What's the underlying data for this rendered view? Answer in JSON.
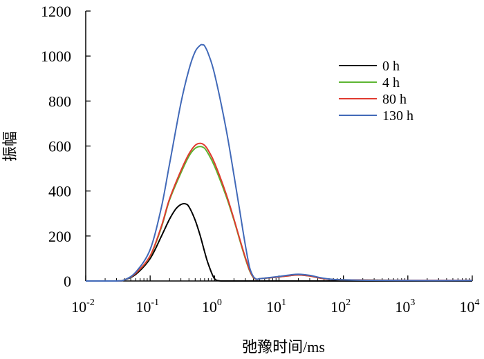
{
  "chart_data": {
    "type": "line",
    "title": "",
    "xlabel": "弛豫时间/ms",
    "ylabel": "振幅",
    "xscale": "log",
    "xlim": [
      0.01,
      10000
    ],
    "ylim": [
      0,
      1200
    ],
    "yticks": [
      "0",
      "200",
      "400",
      "600",
      "800",
      "1000",
      "1200"
    ],
    "xticks": [
      {
        "base": "10",
        "exp": "-2"
      },
      {
        "base": "10",
        "exp": "-1"
      },
      {
        "base": "10",
        "exp": "0"
      },
      {
        "base": "10",
        "exp": "1"
      },
      {
        "base": "10",
        "exp": "2"
      },
      {
        "base": "10",
        "exp": "3"
      },
      {
        "base": "10",
        "exp": "4"
      }
    ],
    "grid": false,
    "legend_position": "top-right",
    "series": [
      {
        "name": "0 h",
        "color": "#000000",
        "x": [
          0.01,
          0.03,
          0.04,
          0.06,
          0.1,
          0.15,
          0.2,
          0.25,
          0.3,
          0.35,
          0.4,
          0.5,
          0.6,
          0.7,
          0.8,
          1.0,
          1.3,
          3,
          10,
          100,
          1000,
          10000
        ],
        "y": [
          0,
          0,
          5,
          30,
          100,
          200,
          275,
          320,
          340,
          343,
          330,
          270,
          200,
          130,
          75,
          10,
          0,
          0,
          0,
          0,
          0,
          0
        ]
      },
      {
        "name": "4 h",
        "color": "#5cb531",
        "x": [
          0.01,
          0.03,
          0.04,
          0.06,
          0.1,
          0.15,
          0.2,
          0.3,
          0.4,
          0.5,
          0.6,
          0.7,
          0.8,
          1.0,
          1.5,
          2.0,
          2.5,
          3.0,
          3.5,
          4.0,
          4.5,
          5,
          7,
          10,
          15,
          20,
          30,
          50,
          100,
          1000,
          10000
        ],
        "y": [
          0,
          0,
          5,
          35,
          110,
          240,
          360,
          480,
          555,
          590,
          598,
          590,
          565,
          510,
          380,
          270,
          175,
          100,
          45,
          15,
          7,
          10,
          14,
          18,
          24,
          27,
          22,
          10,
          5,
          3,
          3
        ]
      },
      {
        "name": "80 h",
        "color": "#e03a2f",
        "x": [
          0.01,
          0.03,
          0.04,
          0.06,
          0.1,
          0.15,
          0.2,
          0.3,
          0.4,
          0.5,
          0.6,
          0.7,
          0.8,
          1.0,
          1.5,
          2.0,
          2.5,
          3.0,
          3.5,
          4.0,
          4.5,
          5,
          7,
          10,
          15,
          20,
          30,
          50,
          100,
          1000,
          10000
        ],
        "y": [
          0,
          0,
          5,
          35,
          112,
          245,
          365,
          490,
          565,
          603,
          612,
          603,
          580,
          525,
          390,
          275,
          180,
          105,
          48,
          16,
          7,
          10,
          14,
          18,
          24,
          27,
          22,
          10,
          5,
          3,
          3
        ]
      },
      {
        "name": "130 h",
        "color": "#4169b8",
        "x": [
          0.01,
          0.03,
          0.04,
          0.06,
          0.1,
          0.15,
          0.2,
          0.3,
          0.4,
          0.5,
          0.6,
          0.65,
          0.7,
          0.8,
          1.0,
          1.5,
          2.0,
          2.5,
          3.0,
          3.5,
          4.0,
          4.5,
          5,
          7,
          10,
          15,
          20,
          30,
          50,
          100,
          1000,
          10000
        ],
        "y": [
          0,
          0,
          5,
          40,
          140,
          330,
          520,
          790,
          940,
          1020,
          1048,
          1050,
          1045,
          1010,
          920,
          680,
          470,
          300,
          160,
          60,
          20,
          8,
          10,
          15,
          20,
          27,
          30,
          25,
          12,
          5,
          2,
          2
        ]
      }
    ]
  }
}
